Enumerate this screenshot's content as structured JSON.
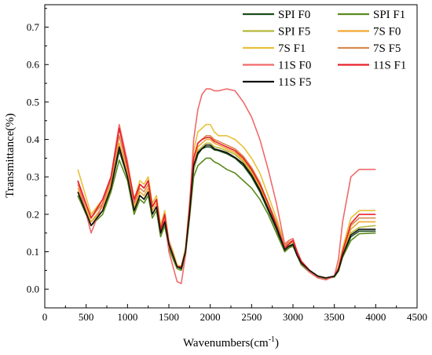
{
  "chart_data": {
    "type": "line",
    "title": "",
    "xlabel": "Wavenumbers(cm",
    "xlabel_sup": "-1",
    "xlabel_close": ")",
    "ylabel": "Transmittance(%)",
    "xlim": [
      0,
      4500
    ],
    "ylim": [
      -0.05,
      0.76
    ],
    "xticks": [
      0,
      500,
      1000,
      1500,
      2000,
      2500,
      3000,
      3500,
      4000,
      4500
    ],
    "xtick_labels": [
      "0",
      "500",
      "1000",
      "1500",
      "2000",
      "2500",
      "3000",
      "3500",
      "4000",
      "4500"
    ],
    "yticks": [
      0.0,
      0.1,
      0.2,
      0.3,
      0.4,
      0.5,
      0.6,
      0.7
    ],
    "ytick_labels": [
      "0.0",
      "0.1",
      "0.2",
      "0.3",
      "0.4",
      "0.5",
      "0.6",
      "0.7"
    ],
    "grid": false,
    "legend_position": "top-right",
    "x": [
      400,
      560,
      700,
      800,
      900,
      1000,
      1080,
      1150,
      1200,
      1250,
      1300,
      1350,
      1400,
      1450,
      1500,
      1550,
      1600,
      1650,
      1700,
      1750,
      1800,
      1850,
      1900,
      1950,
      2000,
      2050,
      2100,
      2200,
      2300,
      2400,
      2500,
      2600,
      2700,
      2800,
      2900,
      2950,
      3000,
      3050,
      3100,
      3200,
      3300,
      3400,
      3500,
      3550,
      3600,
      3700,
      3800,
      4000
    ],
    "series": [
      {
        "name": "SPI F0",
        "color": "#1b4d1b",
        "values": [
          0.25,
          0.17,
          0.21,
          0.27,
          0.37,
          0.3,
          0.21,
          0.25,
          0.24,
          0.26,
          0.2,
          0.22,
          0.15,
          0.18,
          0.12,
          0.09,
          0.06,
          0.055,
          0.1,
          0.2,
          0.32,
          0.36,
          0.375,
          0.38,
          0.38,
          0.372,
          0.37,
          0.362,
          0.35,
          0.33,
          0.3,
          0.26,
          0.21,
          0.16,
          0.1,
          0.11,
          0.12,
          0.09,
          0.07,
          0.05,
          0.035,
          0.03,
          0.035,
          0.05,
          0.09,
          0.14,
          0.155,
          0.155
        ]
      },
      {
        "name": "SPI F1",
        "color": "#5a8a1e",
        "values": [
          0.25,
          0.17,
          0.2,
          0.26,
          0.345,
          0.29,
          0.2,
          0.24,
          0.23,
          0.25,
          0.19,
          0.21,
          0.14,
          0.17,
          0.11,
          0.08,
          0.055,
          0.05,
          0.09,
          0.19,
          0.3,
          0.33,
          0.34,
          0.35,
          0.35,
          0.34,
          0.335,
          0.32,
          0.31,
          0.29,
          0.27,
          0.24,
          0.2,
          0.15,
          0.1,
          0.11,
          0.115,
          0.09,
          0.065,
          0.045,
          0.032,
          0.028,
          0.032,
          0.048,
          0.085,
          0.13,
          0.148,
          0.15
        ]
      },
      {
        "name": "SPI F5",
        "color": "#b5b83a",
        "values": [
          0.26,
          0.18,
          0.21,
          0.27,
          0.38,
          0.3,
          0.21,
          0.25,
          0.24,
          0.26,
          0.2,
          0.22,
          0.15,
          0.18,
          0.12,
          0.09,
          0.06,
          0.06,
          0.1,
          0.2,
          0.32,
          0.37,
          0.38,
          0.39,
          0.39,
          0.38,
          0.378,
          0.37,
          0.36,
          0.34,
          0.31,
          0.27,
          0.22,
          0.17,
          0.11,
          0.12,
          0.125,
          0.095,
          0.07,
          0.05,
          0.035,
          0.03,
          0.035,
          0.05,
          0.09,
          0.15,
          0.165,
          0.17
        ]
      },
      {
        "name": "7S F0",
        "color": "#f0a830",
        "values": [
          0.27,
          0.18,
          0.22,
          0.28,
          0.39,
          0.31,
          0.22,
          0.26,
          0.25,
          0.27,
          0.21,
          0.23,
          0.16,
          0.19,
          0.12,
          0.09,
          0.06,
          0.06,
          0.1,
          0.21,
          0.33,
          0.38,
          0.39,
          0.4,
          0.4,
          0.39,
          0.385,
          0.375,
          0.365,
          0.345,
          0.315,
          0.275,
          0.225,
          0.175,
          0.115,
          0.125,
          0.13,
          0.1,
          0.075,
          0.05,
          0.035,
          0.03,
          0.035,
          0.055,
          0.095,
          0.16,
          0.18,
          0.18
        ]
      },
      {
        "name": "7S F1",
        "color": "#e8c03a",
        "values": [
          0.32,
          0.2,
          0.24,
          0.3,
          0.43,
          0.34,
          0.24,
          0.29,
          0.28,
          0.3,
          0.23,
          0.25,
          0.17,
          0.21,
          0.13,
          0.1,
          0.065,
          0.06,
          0.11,
          0.23,
          0.37,
          0.42,
          0.43,
          0.44,
          0.44,
          0.42,
          0.41,
          0.41,
          0.4,
          0.38,
          0.35,
          0.31,
          0.25,
          0.19,
          0.12,
          0.13,
          0.135,
          0.1,
          0.075,
          0.05,
          0.035,
          0.03,
          0.035,
          0.06,
          0.11,
          0.19,
          0.21,
          0.21
        ]
      },
      {
        "name": "7S F5",
        "color": "#d98a50",
        "values": [
          0.28,
          0.19,
          0.23,
          0.29,
          0.41,
          0.32,
          0.23,
          0.27,
          0.26,
          0.28,
          0.22,
          0.24,
          0.16,
          0.2,
          0.13,
          0.095,
          0.06,
          0.06,
          0.1,
          0.22,
          0.35,
          0.39,
          0.4,
          0.41,
          0.41,
          0.4,
          0.395,
          0.385,
          0.375,
          0.355,
          0.325,
          0.285,
          0.23,
          0.18,
          0.115,
          0.125,
          0.13,
          0.1,
          0.075,
          0.05,
          0.035,
          0.03,
          0.035,
          0.055,
          0.1,
          0.17,
          0.19,
          0.19
        ]
      },
      {
        "name": "11S F0",
        "color": "#f06a6a",
        "values": [
          0.29,
          0.15,
          0.23,
          0.3,
          0.44,
          0.34,
          0.23,
          0.28,
          0.27,
          0.29,
          0.22,
          0.24,
          0.15,
          0.19,
          0.1,
          0.06,
          0.02,
          0.015,
          0.09,
          0.22,
          0.4,
          0.48,
          0.52,
          0.535,
          0.535,
          0.53,
          0.53,
          0.535,
          0.53,
          0.5,
          0.46,
          0.4,
          0.32,
          0.23,
          0.12,
          0.13,
          0.135,
          0.1,
          0.07,
          0.045,
          0.03,
          0.025,
          0.035,
          0.08,
          0.18,
          0.3,
          0.32,
          0.32
        ]
      },
      {
        "name": "11S F1",
        "color": "#e8202a",
        "values": [
          0.29,
          0.19,
          0.24,
          0.3,
          0.43,
          0.33,
          0.24,
          0.28,
          0.27,
          0.29,
          0.22,
          0.24,
          0.16,
          0.2,
          0.12,
          0.09,
          0.06,
          0.06,
          0.1,
          0.22,
          0.35,
          0.39,
          0.4,
          0.405,
          0.405,
          0.395,
          0.39,
          0.38,
          0.37,
          0.35,
          0.32,
          0.28,
          0.23,
          0.17,
          0.11,
          0.12,
          0.13,
          0.1,
          0.075,
          0.05,
          0.035,
          0.03,
          0.035,
          0.055,
          0.1,
          0.175,
          0.2,
          0.2
        ]
      },
      {
        "name": "11S F5",
        "color": "#111111",
        "values": [
          0.26,
          0.17,
          0.21,
          0.27,
          0.38,
          0.3,
          0.21,
          0.25,
          0.24,
          0.26,
          0.2,
          0.22,
          0.15,
          0.18,
          0.12,
          0.09,
          0.06,
          0.055,
          0.1,
          0.2,
          0.33,
          0.365,
          0.375,
          0.385,
          0.385,
          0.375,
          0.372,
          0.365,
          0.352,
          0.335,
          0.305,
          0.265,
          0.215,
          0.165,
          0.105,
          0.115,
          0.12,
          0.09,
          0.07,
          0.05,
          0.035,
          0.03,
          0.035,
          0.05,
          0.09,
          0.145,
          0.16,
          0.16
        ]
      }
    ]
  }
}
